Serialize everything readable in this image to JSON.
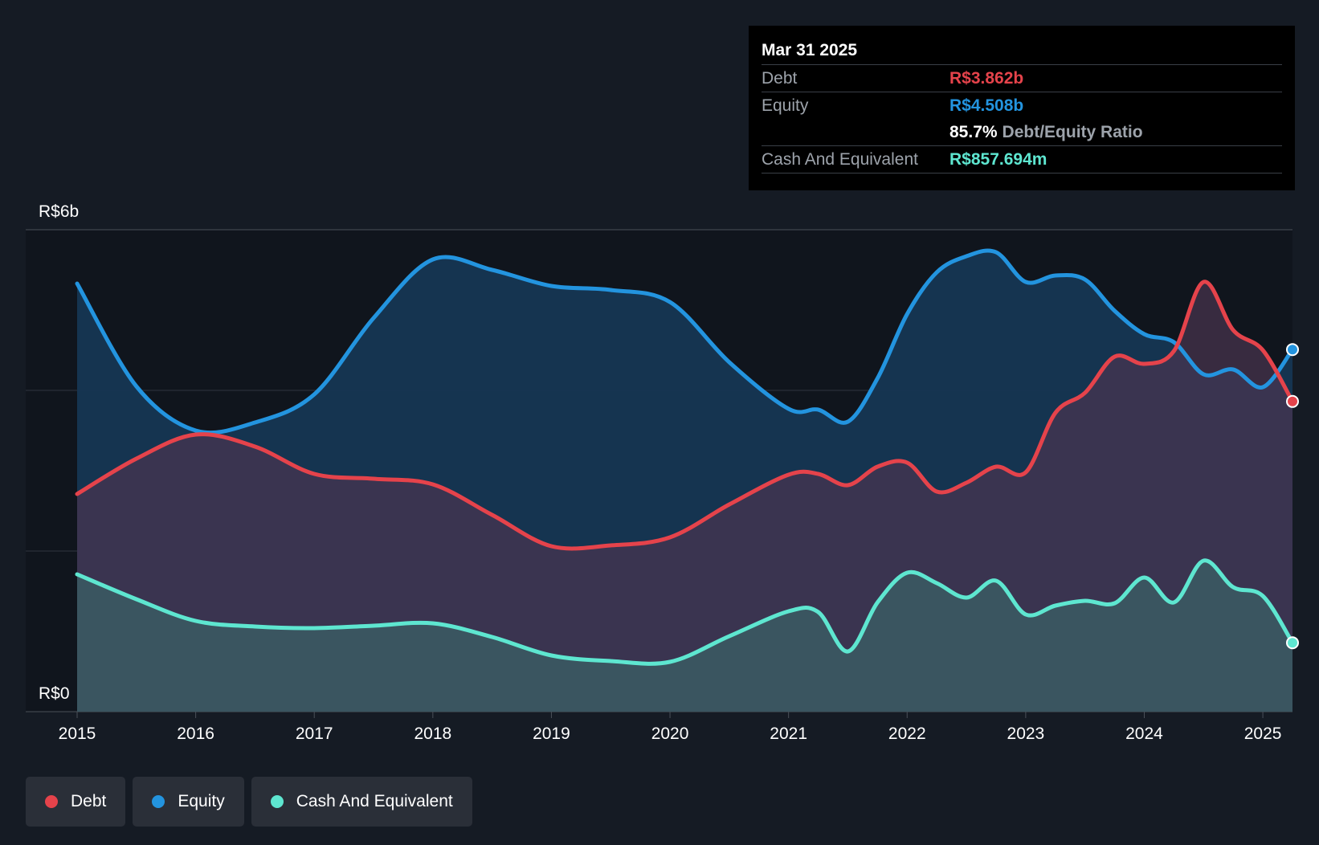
{
  "tooltip": {
    "date": "Mar 31 2025",
    "debt_label": "Debt",
    "debt_value": "R$3.862b",
    "equity_label": "Equity",
    "equity_value": "R$4.508b",
    "ratio_value": "85.7%",
    "ratio_label": "Debt/Equity Ratio",
    "cash_label": "Cash And Equivalent",
    "cash_value": "R$857.694m"
  },
  "legend": [
    {
      "label": "Debt",
      "color": "#e5434b"
    },
    {
      "label": "Equity",
      "color": "#2394df"
    },
    {
      "label": "Cash And Equivalent",
      "color": "#5ee6d0"
    }
  ],
  "colors": {
    "debt": "#e5434b",
    "equity": "#2394df",
    "cash": "#5ee6d0",
    "background": "#151b24"
  },
  "chart_data": {
    "type": "area",
    "title": "",
    "ylabel_top": "R$6b",
    "ylabel_bottom": "R$0",
    "ylim": [
      0,
      6
    ],
    "xlim": [
      2015,
      2025.25
    ],
    "x_ticks": [
      "2015",
      "2016",
      "2017",
      "2018",
      "2019",
      "2020",
      "2021",
      "2022",
      "2023",
      "2024",
      "2025"
    ],
    "series": [
      {
        "name": "Debt",
        "points": [
          [
            2015,
            2.71
          ],
          [
            2015.5,
            3.15
          ],
          [
            2016,
            3.45
          ],
          [
            2016.5,
            3.3
          ],
          [
            2017,
            2.96
          ],
          [
            2017.5,
            2.9
          ],
          [
            2018,
            2.83
          ],
          [
            2018.5,
            2.45
          ],
          [
            2019,
            2.06
          ],
          [
            2019.5,
            2.07
          ],
          [
            2020,
            2.17
          ],
          [
            2020.5,
            2.58
          ],
          [
            2021,
            2.95
          ],
          [
            2021.25,
            2.96
          ],
          [
            2021.5,
            2.82
          ],
          [
            2021.75,
            3.05
          ],
          [
            2022,
            3.1
          ],
          [
            2022.25,
            2.74
          ],
          [
            2022.5,
            2.85
          ],
          [
            2022.75,
            3.05
          ],
          [
            2023,
            2.98
          ],
          [
            2023.25,
            3.72
          ],
          [
            2023.5,
            3.97
          ],
          [
            2023.75,
            4.42
          ],
          [
            2024,
            4.33
          ],
          [
            2024.25,
            4.49
          ],
          [
            2024.5,
            5.35
          ],
          [
            2024.75,
            4.75
          ],
          [
            2025,
            4.5
          ],
          [
            2025.25,
            3.862
          ]
        ]
      },
      {
        "name": "Equity",
        "points": [
          [
            2015,
            5.33
          ],
          [
            2015.5,
            4.05
          ],
          [
            2016,
            3.5
          ],
          [
            2016.5,
            3.6
          ],
          [
            2017,
            3.95
          ],
          [
            2017.5,
            4.9
          ],
          [
            2018,
            5.63
          ],
          [
            2018.5,
            5.5
          ],
          [
            2019,
            5.3
          ],
          [
            2019.5,
            5.25
          ],
          [
            2020,
            5.1
          ],
          [
            2020.5,
            4.35
          ],
          [
            2021,
            3.77
          ],
          [
            2021.25,
            3.76
          ],
          [
            2021.5,
            3.61
          ],
          [
            2021.75,
            4.15
          ],
          [
            2022,
            4.95
          ],
          [
            2022.25,
            5.47
          ],
          [
            2022.5,
            5.67
          ],
          [
            2022.75,
            5.72
          ],
          [
            2023,
            5.35
          ],
          [
            2023.25,
            5.43
          ],
          [
            2023.5,
            5.38
          ],
          [
            2023.75,
            4.99
          ],
          [
            2024,
            4.7
          ],
          [
            2024.25,
            4.6
          ],
          [
            2024.5,
            4.2
          ],
          [
            2024.75,
            4.26
          ],
          [
            2025,
            4.04
          ],
          [
            2025.25,
            4.508
          ]
        ]
      },
      {
        "name": "Cash And Equivalent",
        "points": [
          [
            2015,
            1.71
          ],
          [
            2015.5,
            1.4
          ],
          [
            2016,
            1.13
          ],
          [
            2016.5,
            1.06
          ],
          [
            2017,
            1.04
          ],
          [
            2017.5,
            1.07
          ],
          [
            2018,
            1.1
          ],
          [
            2018.5,
            0.93
          ],
          [
            2019,
            0.7
          ],
          [
            2019.5,
            0.63
          ],
          [
            2020,
            0.62
          ],
          [
            2020.5,
            0.94
          ],
          [
            2021,
            1.25
          ],
          [
            2021.25,
            1.24
          ],
          [
            2021.5,
            0.75
          ],
          [
            2021.75,
            1.36
          ],
          [
            2022,
            1.73
          ],
          [
            2022.25,
            1.6
          ],
          [
            2022.5,
            1.42
          ],
          [
            2022.75,
            1.63
          ],
          [
            2023,
            1.21
          ],
          [
            2023.25,
            1.32
          ],
          [
            2023.5,
            1.38
          ],
          [
            2023.75,
            1.35
          ],
          [
            2024,
            1.67
          ],
          [
            2024.25,
            1.36
          ],
          [
            2024.5,
            1.88
          ],
          [
            2024.75,
            1.55
          ],
          [
            2025,
            1.44
          ],
          [
            2025.25,
            0.858
          ]
        ]
      }
    ]
  }
}
